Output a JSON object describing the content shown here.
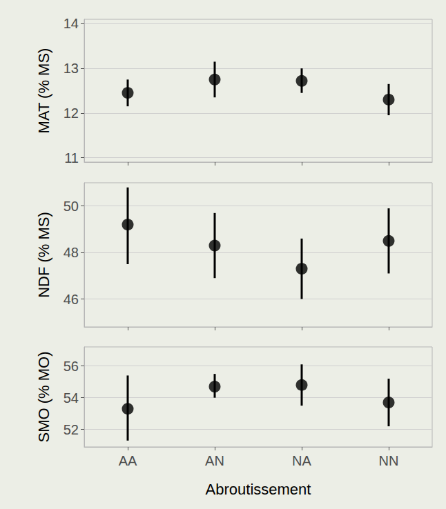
{
  "chart_data": [
    {
      "type": "scatter",
      "ylabel": "MAT (% MS)",
      "categories": [
        "AA",
        "AN",
        "NA",
        "NN"
      ],
      "values": [
        12.45,
        12.75,
        12.72,
        12.3
      ],
      "lower": [
        12.15,
        12.35,
        12.45,
        11.95
      ],
      "upper": [
        12.75,
        13.15,
        13.0,
        12.65
      ],
      "color": "#000000",
      "ylim": [
        10.9,
        14.1
      ],
      "yticks": [
        11,
        12,
        13,
        14
      ],
      "grid": true,
      "tick_labels": "y"
    },
    {
      "type": "scatter",
      "ylabel": "NDF (% MS)",
      "categories": [
        "AA",
        "AN",
        "NA",
        "NN"
      ],
      "values": [
        49.2,
        48.3,
        47.3,
        48.5
      ],
      "lower": [
        47.5,
        46.9,
        46.0,
        47.1
      ],
      "upper": [
        50.8,
        49.7,
        48.6,
        49.9
      ],
      "color": "#000000",
      "ylim": [
        44.8,
        51.0
      ],
      "yticks": [
        46,
        48,
        50
      ],
      "grid": true,
      "tick_labels": "y"
    },
    {
      "type": "scatter",
      "ylabel": "SMO (% MO)",
      "xlabel": "Abroutissement",
      "categories": [
        "AA",
        "AN",
        "NA",
        "NN"
      ],
      "values": [
        53.3,
        54.7,
        54.8,
        53.7
      ],
      "lower": [
        51.3,
        54.0,
        53.5,
        52.2
      ],
      "upper": [
        55.4,
        55.5,
        56.1,
        55.2
      ],
      "color": "#000000",
      "ylim": [
        50.9,
        57.2
      ],
      "yticks": [
        52,
        54,
        56
      ],
      "grid": true
    }
  ]
}
